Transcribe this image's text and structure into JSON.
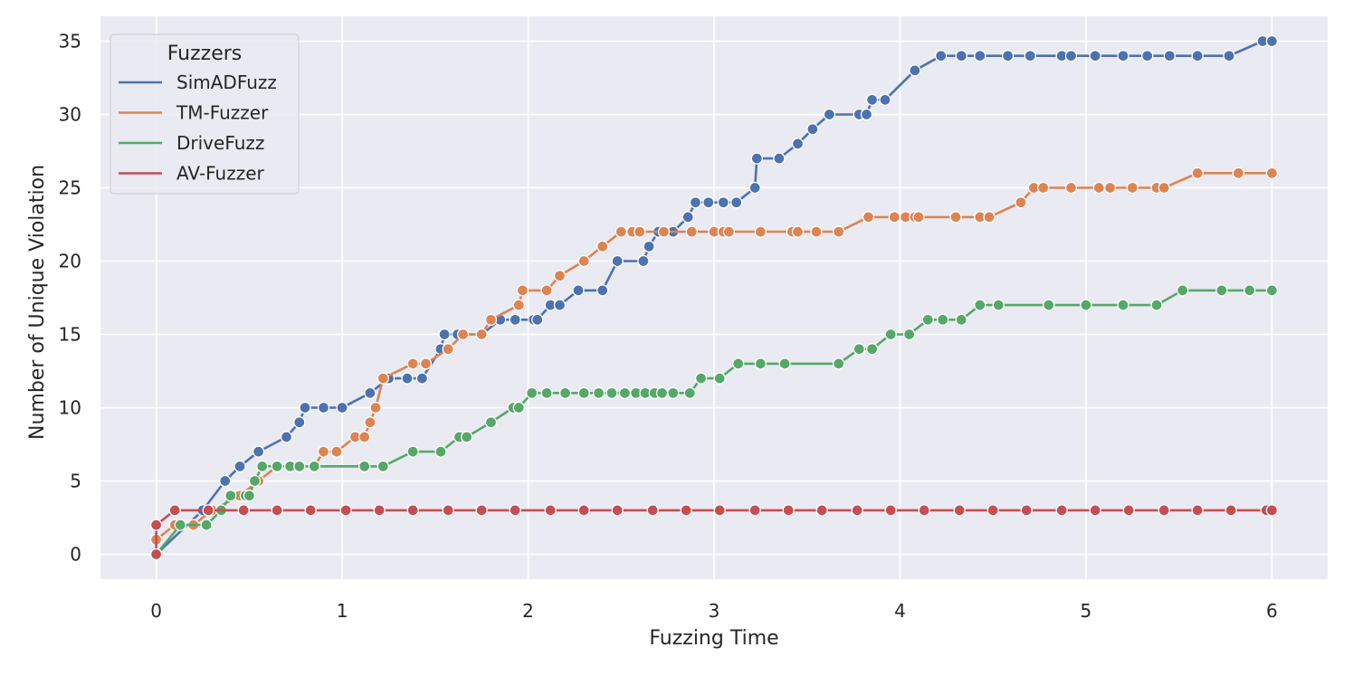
{
  "chart_data": {
    "type": "line",
    "title": "",
    "xlabel": "Fuzzing Time",
    "ylabel": "Number of Unique Violation",
    "xlim": [
      -0.3,
      6.3
    ],
    "ylim": [
      -1.7,
      36.7
    ],
    "xticks": [
      0,
      1,
      2,
      3,
      4,
      5,
      6
    ],
    "yticks": [
      0,
      5,
      10,
      15,
      20,
      25,
      30,
      35
    ],
    "grid": true,
    "legend": {
      "title": "Fuzzers",
      "placement": "top-left"
    },
    "series": [
      {
        "name": "SimADFuzz",
        "color": "#4c72b0",
        "points": [
          [
            0,
            0
          ],
          [
            0.25,
            3
          ],
          [
            0.37,
            5
          ],
          [
            0.45,
            6
          ],
          [
            0.55,
            7
          ],
          [
            0.7,
            8
          ],
          [
            0.77,
            9
          ],
          [
            0.8,
            10
          ],
          [
            0.9,
            10
          ],
          [
            1.0,
            10
          ],
          [
            1.15,
            11
          ],
          [
            1.25,
            12
          ],
          [
            1.35,
            12
          ],
          [
            1.43,
            12
          ],
          [
            1.53,
            14
          ],
          [
            1.55,
            15
          ],
          [
            1.62,
            15
          ],
          [
            1.75,
            15
          ],
          [
            1.85,
            16
          ],
          [
            1.93,
            16
          ],
          [
            2.03,
            16
          ],
          [
            2.05,
            16
          ],
          [
            2.12,
            17
          ],
          [
            2.17,
            17
          ],
          [
            2.27,
            18
          ],
          [
            2.4,
            18
          ],
          [
            2.48,
            20
          ],
          [
            2.62,
            20
          ],
          [
            2.65,
            21
          ],
          [
            2.7,
            22
          ],
          [
            2.78,
            22
          ],
          [
            2.86,
            23
          ],
          [
            2.9,
            24
          ],
          [
            2.97,
            24
          ],
          [
            3.05,
            24
          ],
          [
            3.12,
            24
          ],
          [
            3.22,
            25
          ],
          [
            3.23,
            27
          ],
          [
            3.35,
            27
          ],
          [
            3.45,
            28
          ],
          [
            3.53,
            29
          ],
          [
            3.62,
            30
          ],
          [
            3.78,
            30
          ],
          [
            3.82,
            30
          ],
          [
            3.85,
            31
          ],
          [
            3.92,
            31
          ],
          [
            4.08,
            33
          ],
          [
            4.22,
            34
          ],
          [
            4.33,
            34
          ],
          [
            4.43,
            34
          ],
          [
            4.58,
            34
          ],
          [
            4.7,
            34
          ],
          [
            4.87,
            34
          ],
          [
            4.92,
            34
          ],
          [
            5.05,
            34
          ],
          [
            5.2,
            34
          ],
          [
            5.33,
            34
          ],
          [
            5.45,
            34
          ],
          [
            5.6,
            34
          ],
          [
            5.77,
            34
          ],
          [
            5.95,
            35
          ],
          [
            6.0,
            35
          ]
        ]
      },
      {
        "name": "TM-Fuzzer",
        "color": "#dd8452",
        "points": [
          [
            0,
            1
          ],
          [
            0.1,
            2
          ],
          [
            0.2,
            2
          ],
          [
            0.3,
            3
          ],
          [
            0.45,
            4
          ],
          [
            0.55,
            5
          ],
          [
            0.65,
            6
          ],
          [
            0.72,
            6
          ],
          [
            0.85,
            6
          ],
          [
            0.9,
            7
          ],
          [
            0.97,
            7
          ],
          [
            1.07,
            8
          ],
          [
            1.12,
            8
          ],
          [
            1.15,
            9
          ],
          [
            1.18,
            10
          ],
          [
            1.22,
            12
          ],
          [
            1.38,
            13
          ],
          [
            1.45,
            13
          ],
          [
            1.57,
            14
          ],
          [
            1.65,
            15
          ],
          [
            1.75,
            15
          ],
          [
            1.8,
            16
          ],
          [
            1.95,
            17
          ],
          [
            1.97,
            18
          ],
          [
            2.1,
            18
          ],
          [
            2.17,
            19
          ],
          [
            2.3,
            20
          ],
          [
            2.4,
            21
          ],
          [
            2.5,
            22
          ],
          [
            2.56,
            22
          ],
          [
            2.6,
            22
          ],
          [
            2.73,
            22
          ],
          [
            2.88,
            22
          ],
          [
            3.0,
            22
          ],
          [
            3.05,
            22
          ],
          [
            3.08,
            22
          ],
          [
            3.25,
            22
          ],
          [
            3.42,
            22
          ],
          [
            3.45,
            22
          ],
          [
            3.55,
            22
          ],
          [
            3.67,
            22
          ],
          [
            3.83,
            23
          ],
          [
            3.97,
            23
          ],
          [
            4.03,
            23
          ],
          [
            4.08,
            23
          ],
          [
            4.1,
            23
          ],
          [
            4.3,
            23
          ],
          [
            4.43,
            23
          ],
          [
            4.48,
            23
          ],
          [
            4.65,
            24
          ],
          [
            4.72,
            25
          ],
          [
            4.77,
            25
          ],
          [
            4.92,
            25
          ],
          [
            5.07,
            25
          ],
          [
            5.13,
            25
          ],
          [
            5.25,
            25
          ],
          [
            5.38,
            25
          ],
          [
            5.42,
            25
          ],
          [
            5.6,
            26
          ],
          [
            5.82,
            26
          ],
          [
            6.0,
            26
          ]
        ]
      },
      {
        "name": "DriveFuzz",
        "color": "#55a868",
        "points": [
          [
            0,
            0
          ],
          [
            0.13,
            2
          ],
          [
            0.27,
            2
          ],
          [
            0.35,
            3
          ],
          [
            0.4,
            4
          ],
          [
            0.48,
            4
          ],
          [
            0.5,
            4
          ],
          [
            0.53,
            5
          ],
          [
            0.57,
            6
          ],
          [
            0.65,
            6
          ],
          [
            0.72,
            6
          ],
          [
            0.77,
            6
          ],
          [
            0.85,
            6
          ],
          [
            1.12,
            6
          ],
          [
            1.22,
            6
          ],
          [
            1.38,
            7
          ],
          [
            1.53,
            7
          ],
          [
            1.63,
            8
          ],
          [
            1.67,
            8
          ],
          [
            1.8,
            9
          ],
          [
            1.92,
            10
          ],
          [
            1.95,
            10
          ],
          [
            2.02,
            11
          ],
          [
            2.1,
            11
          ],
          [
            2.2,
            11
          ],
          [
            2.3,
            11
          ],
          [
            2.38,
            11
          ],
          [
            2.45,
            11
          ],
          [
            2.52,
            11
          ],
          [
            2.58,
            11
          ],
          [
            2.63,
            11
          ],
          [
            2.68,
            11
          ],
          [
            2.72,
            11
          ],
          [
            2.78,
            11
          ],
          [
            2.87,
            11
          ],
          [
            2.93,
            12
          ],
          [
            3.03,
            12
          ],
          [
            3.13,
            13
          ],
          [
            3.25,
            13
          ],
          [
            3.38,
            13
          ],
          [
            3.67,
            13
          ],
          [
            3.78,
            14
          ],
          [
            3.85,
            14
          ],
          [
            3.95,
            15
          ],
          [
            4.05,
            15
          ],
          [
            4.15,
            16
          ],
          [
            4.23,
            16
          ],
          [
            4.33,
            16
          ],
          [
            4.43,
            17
          ],
          [
            4.53,
            17
          ],
          [
            4.8,
            17
          ],
          [
            5.0,
            17
          ],
          [
            5.2,
            17
          ],
          [
            5.38,
            17
          ],
          [
            5.52,
            18
          ],
          [
            5.73,
            18
          ],
          [
            5.88,
            18
          ],
          [
            6.0,
            18
          ]
        ]
      },
      {
        "name": "AV-Fuzzer",
        "color": "#c44e52",
        "points": [
          [
            0,
            0
          ],
          [
            0,
            2
          ],
          [
            0.1,
            3
          ],
          [
            0.28,
            3
          ],
          [
            0.47,
            3
          ],
          [
            0.65,
            3
          ],
          [
            0.83,
            3
          ],
          [
            1.02,
            3
          ],
          [
            1.2,
            3
          ],
          [
            1.38,
            3
          ],
          [
            1.57,
            3
          ],
          [
            1.75,
            3
          ],
          [
            1.93,
            3
          ],
          [
            2.12,
            3
          ],
          [
            2.3,
            3
          ],
          [
            2.48,
            3
          ],
          [
            2.67,
            3
          ],
          [
            2.85,
            3
          ],
          [
            3.03,
            3
          ],
          [
            3.22,
            3
          ],
          [
            3.4,
            3
          ],
          [
            3.58,
            3
          ],
          [
            3.77,
            3
          ],
          [
            3.95,
            3
          ],
          [
            4.13,
            3
          ],
          [
            4.32,
            3
          ],
          [
            4.5,
            3
          ],
          [
            4.68,
            3
          ],
          [
            4.87,
            3
          ],
          [
            5.05,
            3
          ],
          [
            5.23,
            3
          ],
          [
            5.42,
            3
          ],
          [
            5.6,
            3
          ],
          [
            5.78,
            3
          ],
          [
            5.97,
            3
          ],
          [
            6.0,
            3
          ]
        ]
      }
    ]
  }
}
